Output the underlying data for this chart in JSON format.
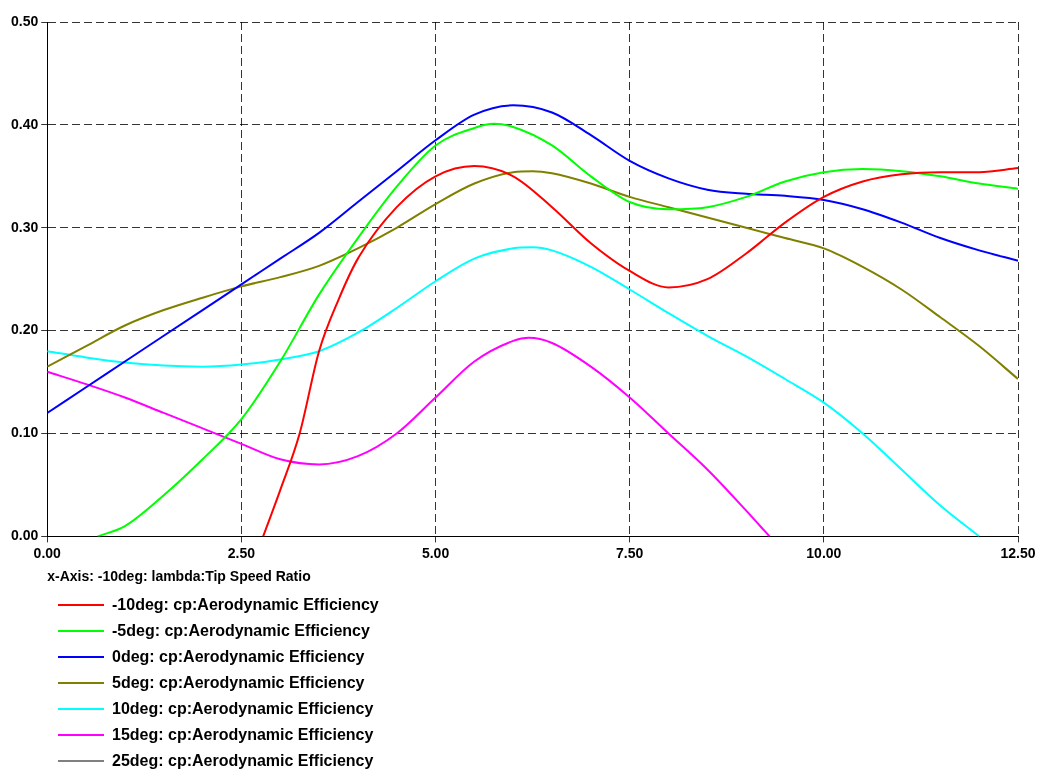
{
  "chart_data": {
    "type": "line",
    "xlabel": "x-Axis: -10deg: lambda:Tip Speed Ratio",
    "xlim": [
      0,
      12.5
    ],
    "xticks": [
      {
        "value": 0,
        "label": "0.00"
      },
      {
        "value": 2.5,
        "label": "2.50"
      },
      {
        "value": 5,
        "label": "5.00"
      },
      {
        "value": 7.5,
        "label": "7.50"
      },
      {
        "value": 10,
        "label": "10.00"
      },
      {
        "value": 12.5,
        "label": "12.50"
      }
    ],
    "ylim": [
      0,
      0.5
    ],
    "yticks": [
      {
        "value": 0,
        "label": "0.00"
      },
      {
        "value": 0.1,
        "label": "0.10"
      },
      {
        "value": 0.2,
        "label": "0.20"
      },
      {
        "value": 0.3,
        "label": "0.30"
      },
      {
        "value": 0.4,
        "label": "0.40"
      },
      {
        "value": 0.5,
        "label": "0.50"
      }
    ],
    "grid": true,
    "legend": "bottom",
    "marker": "none",
    "line_style": "solid",
    "series": [
      {
        "name": "-10deg: cp:Aerodynamic Efficiency",
        "color": "#ff0000",
        "x": [
          2.78,
          3,
          3.25,
          3.5,
          3.75,
          4,
          4.5,
          5,
          5.5,
          6,
          6.5,
          7,
          7.5,
          8,
          8.5,
          9,
          9.5,
          10,
          10.5,
          11,
          11.5,
          12,
          12.5
        ],
        "values": [
          0,
          0.045,
          0.1,
          0.18,
          0.23,
          0.27,
          0.32,
          0.35,
          0.36,
          0.35,
          0.32,
          0.285,
          0.258,
          0.242,
          0.25,
          0.275,
          0.305,
          0.33,
          0.345,
          0.352,
          0.354,
          0.354,
          0.358
        ]
      },
      {
        "name": "-5deg: cp:Aerodynamic Efficiency",
        "color": "#00ff00",
        "x": [
          0.65,
          1,
          1.5,
          2,
          2.5,
          3,
          3.5,
          4,
          4.5,
          5,
          5.5,
          5.75,
          6,
          6.5,
          7,
          7.5,
          8,
          8.5,
          9,
          9.5,
          10,
          10.5,
          11,
          11.5,
          12,
          12.5
        ],
        "values": [
          0,
          0.01,
          0.04,
          0.075,
          0.114,
          0.17,
          0.235,
          0.29,
          0.34,
          0.38,
          0.397,
          0.401,
          0.398,
          0.38,
          0.35,
          0.325,
          0.318,
          0.32,
          0.33,
          0.345,
          0.354,
          0.357,
          0.355,
          0.35,
          0.343,
          0.338
        ]
      },
      {
        "name": "0deg: cp:Aerodynamic Efficiency",
        "color": "#0000ff",
        "x": [
          0,
          0.5,
          1,
          1.5,
          2,
          2.5,
          3,
          3.5,
          4,
          4.5,
          5,
          5.5,
          6,
          6.5,
          7,
          7.5,
          8,
          8.5,
          9,
          9.5,
          10,
          10.5,
          11,
          11.5,
          12,
          12.5
        ],
        "values": [
          0.12,
          0.145,
          0.17,
          0.195,
          0.22,
          0.245,
          0.27,
          0.295,
          0.325,
          0.355,
          0.385,
          0.41,
          0.419,
          0.412,
          0.39,
          0.365,
          0.348,
          0.337,
          0.333,
          0.331,
          0.327,
          0.318,
          0.305,
          0.29,
          0.278,
          0.268
        ]
      },
      {
        "name": "5deg: cp:Aerodynamic Efficiency",
        "color": "#808000",
        "x": [
          0,
          0.5,
          1,
          1.5,
          2,
          2.5,
          3,
          3.5,
          4,
          4.5,
          5,
          5.5,
          6,
          6.25,
          6.5,
          7,
          7.5,
          8,
          8.5,
          9,
          9.5,
          10,
          10.5,
          11,
          11.5,
          12,
          12.5
        ],
        "values": [
          0.165,
          0.185,
          0.205,
          0.22,
          0.232,
          0.243,
          0.252,
          0.263,
          0.28,
          0.3,
          0.323,
          0.343,
          0.354,
          0.355,
          0.353,
          0.343,
          0.33,
          0.32,
          0.31,
          0.3,
          0.29,
          0.28,
          0.262,
          0.24,
          0.213,
          0.185,
          0.153
        ]
      },
      {
        "name": "10deg: cp:Aerodynamic Efficiency",
        "color": "#00ffff",
        "x": [
          0,
          0.5,
          1,
          1.5,
          2,
          2.5,
          3,
          3.5,
          4,
          4.5,
          5,
          5.5,
          6,
          6.25,
          6.5,
          7,
          7.5,
          8,
          8.5,
          9,
          9.5,
          10,
          10.5,
          11,
          11.5,
          12
        ],
        "values": [
          0.18,
          0.174,
          0.169,
          0.166,
          0.165,
          0.167,
          0.172,
          0.18,
          0.198,
          0.222,
          0.248,
          0.27,
          0.28,
          0.281,
          0.278,
          0.262,
          0.24,
          0.217,
          0.195,
          0.175,
          0.153,
          0.13,
          0.1,
          0.065,
          0.03,
          0
        ]
      },
      {
        "name": "15deg: cp:Aerodynamic Efficiency",
        "color": "#ff00ff",
        "x": [
          0,
          0.5,
          1,
          1.5,
          2,
          2.5,
          3,
          3.5,
          4,
          4.5,
          5,
          5.5,
          6,
          6.2,
          6.5,
          7,
          7.5,
          8,
          8.5,
          9,
          9.3
        ],
        "values": [
          0.16,
          0.148,
          0.135,
          0.12,
          0.105,
          0.09,
          0.075,
          0.07,
          0.078,
          0.1,
          0.135,
          0.17,
          0.19,
          0.193,
          0.188,
          0.165,
          0.135,
          0.1,
          0.065,
          0.025,
          0
        ]
      },
      {
        "name": "25deg: cp:Aerodynamic Efficiency",
        "color": "#808080"
      }
    ]
  }
}
